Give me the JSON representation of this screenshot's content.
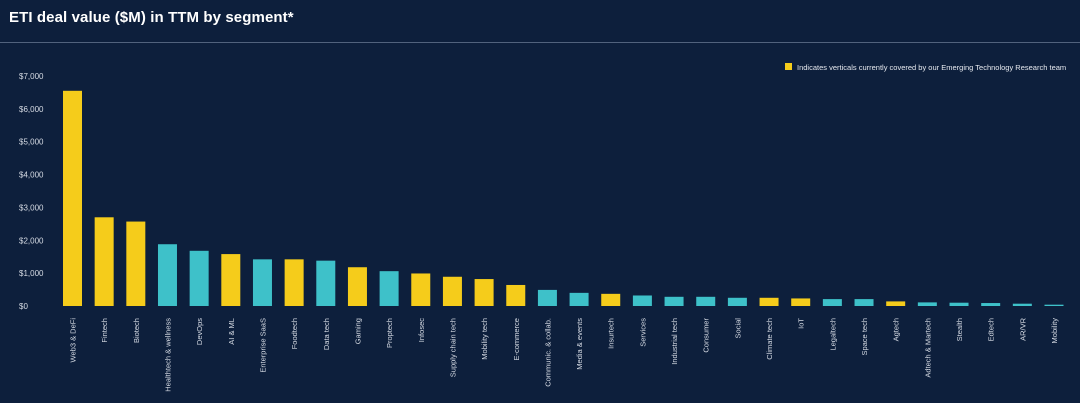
{
  "title": "ETI deal value ($M) in TTM by segment*",
  "colors": {
    "background": "#0d1f3c",
    "yellow": "#f5cc1b",
    "teal": "#3ec1c9"
  },
  "chart_data": {
    "type": "bar",
    "title": "ETI deal value ($M) in TTM by segment*",
    "xlabel": "",
    "ylabel": "",
    "ylim": [
      0,
      7000
    ],
    "yticks": [
      0,
      1000,
      2000,
      3000,
      4000,
      5000,
      6000,
      7000
    ],
    "ytick_labels": [
      "$0",
      "$1,000",
      "$2,000",
      "$3,000",
      "$4,000",
      "$5,000",
      "$6,000",
      "$7,000"
    ],
    "legend": {
      "label": "Indicates verticals currently covered by our Emerging Technology Research team",
      "placement": "top-right"
    },
    "categories": [
      "Web3 & DeFi",
      "Fintech",
      "Biotech",
      "Healthtech & wellness",
      "DevOps",
      "AI & ML",
      "Enterprise SaaS",
      "Foodtech",
      "Data tech",
      "Gaming",
      "Proptech",
      "Infosec",
      "Supply chain tech",
      "Mobility tech",
      "E-commerce",
      "Communic. & collab.",
      "Media & events",
      "Insurtech",
      "Services",
      "Industrial tech",
      "Consumer",
      "Social",
      "Climate tech",
      "IoT",
      "Legaltech",
      "Space tech",
      "Agtech",
      "Adtech & Martech",
      "Stealth",
      "Edtech",
      "AR/VR",
      "Mobility"
    ],
    "values": [
      6550,
      2700,
      2570,
      1880,
      1680,
      1580,
      1420,
      1420,
      1380,
      1180,
      1060,
      990,
      890,
      820,
      640,
      490,
      400,
      370,
      320,
      280,
      280,
      250,
      250,
      230,
      210,
      210,
      140,
      110,
      100,
      90,
      70,
      40
    ],
    "covered": [
      true,
      true,
      true,
      false,
      false,
      true,
      false,
      true,
      false,
      true,
      false,
      true,
      true,
      true,
      true,
      false,
      false,
      true,
      false,
      false,
      false,
      false,
      true,
      true,
      false,
      false,
      true,
      false,
      false,
      false,
      false,
      false
    ]
  }
}
